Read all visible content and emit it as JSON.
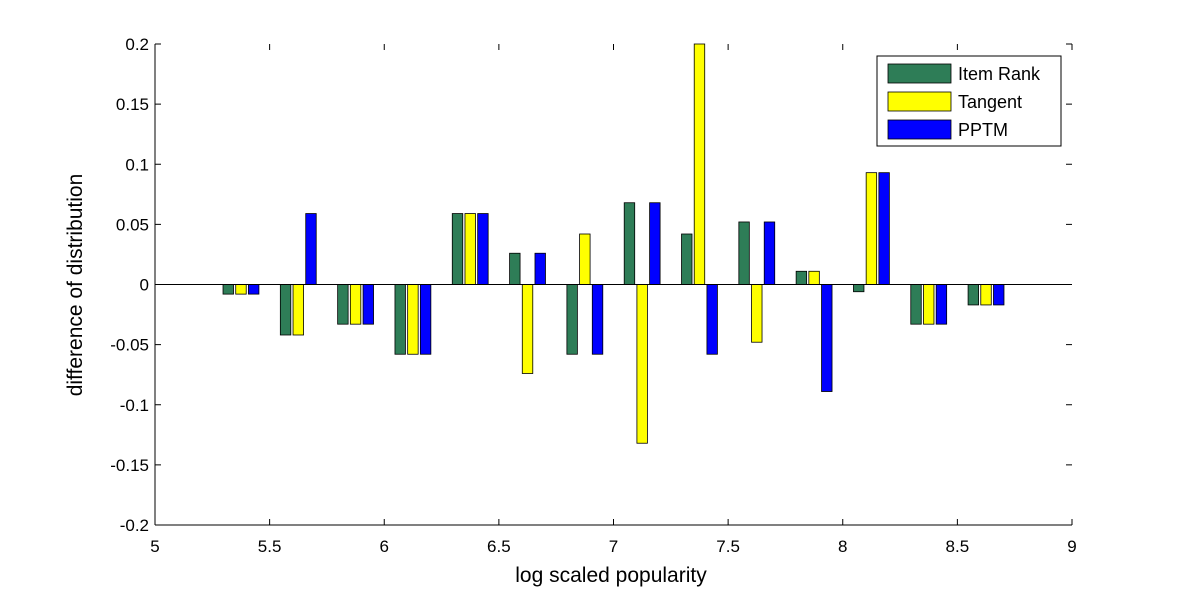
{
  "chart_data": {
    "type": "bar",
    "xlabel": "log scaled popularity",
    "ylabel": "difference of distribution",
    "xlim": [
      5,
      9
    ],
    "ylim": [
      -0.2,
      0.2
    ],
    "x_ticks": [
      "5",
      "5.5",
      "6",
      "6.5",
      "7",
      "7.5",
      "8",
      "8.5",
      "9"
    ],
    "y_ticks": [
      "-0.2",
      "-0.15",
      "-0.1",
      "-0.05",
      "0",
      "0.05",
      "0.1",
      "0.15",
      "0.2"
    ],
    "x": [
      5.375,
      5.625,
      5.875,
      6.125,
      6.375,
      6.625,
      6.875,
      7.125,
      7.375,
      7.625,
      7.875,
      8.125,
      8.375,
      8.625
    ],
    "legend_position": "top-right",
    "grid": false,
    "series": [
      {
        "name": "Item Rank",
        "color": "#2e7d57",
        "values": [
          -0.008,
          -0.042,
          -0.033,
          -0.058,
          0.059,
          0.026,
          -0.058,
          0.068,
          0.042,
          0.052,
          0.011,
          -0.006,
          -0.033,
          -0.017
        ]
      },
      {
        "name": "Tangent",
        "color": "#ffff00",
        "values": [
          -0.008,
          -0.042,
          -0.033,
          -0.058,
          0.059,
          -0.074,
          0.042,
          -0.132,
          0.2,
          -0.048,
          0.011,
          0.093,
          -0.033,
          -0.017
        ]
      },
      {
        "name": "PPTM",
        "color": "#0000ff",
        "values": [
          -0.008,
          0.059,
          -0.033,
          -0.058,
          0.059,
          0.026,
          -0.058,
          0.068,
          -0.058,
          0.052,
          -0.089,
          0.093,
          -0.033,
          -0.017
        ]
      }
    ]
  }
}
